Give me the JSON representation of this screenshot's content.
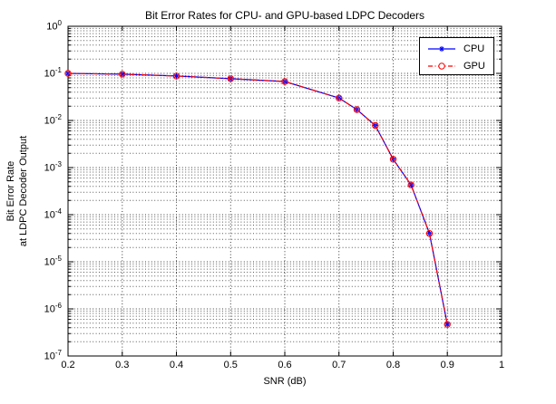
{
  "chart_data": {
    "type": "line",
    "title": "Bit Error Rates for CPU- and GPU-based LDPC Decoders",
    "xlabel": "SNR (dB)",
    "ylabel": "Bit Error Rate at LDPC Decoder Output",
    "ylabel_lines": [
      "Bit Error Rate",
      "at LDPC Decoder Output"
    ],
    "x_scale": "linear",
    "y_scale": "log10",
    "xlim": [
      0.2,
      1
    ],
    "ylim": [
      1e-07,
      1
    ],
    "grid": true,
    "minor_grid": true,
    "legend_position": "northeast",
    "x": [
      0.2,
      0.3,
      0.4,
      0.5,
      0.6,
      0.7,
      0.733,
      0.767,
      0.8,
      0.833,
      0.867,
      0.9
    ],
    "series": [
      {
        "name": "CPU",
        "color": "#0000ff",
        "marker": "asterisk",
        "linestyle": "solid",
        "values": [
          0.1,
          0.096,
          0.088,
          0.077,
          0.067,
          0.03,
          0.017,
          0.0078,
          0.0015,
          0.00043,
          4e-05,
          4.7e-07
        ]
      },
      {
        "name": "GPU",
        "color": "#ff0000",
        "marker": "circle",
        "linestyle": "dash-dot",
        "values": [
          0.1,
          0.096,
          0.088,
          0.077,
          0.067,
          0.03,
          0.017,
          0.0078,
          0.0015,
          0.00043,
          4e-05,
          4.7e-07
        ]
      }
    ],
    "x_ticks": [
      0.2,
      0.3,
      0.4,
      0.5,
      0.6,
      0.7,
      0.8,
      0.9,
      1
    ],
    "x_tick_labels": [
      "0.2",
      "0.3",
      "0.4",
      "0.5",
      "0.6",
      "0.7",
      "0.8",
      "0.9",
      "1"
    ],
    "y_tick_exponents": [
      0,
      -1,
      -2,
      -3,
      -4,
      -5,
      -6,
      -7
    ],
    "grid_color": "#5a5a5a",
    "axis_color": "#000000"
  }
}
